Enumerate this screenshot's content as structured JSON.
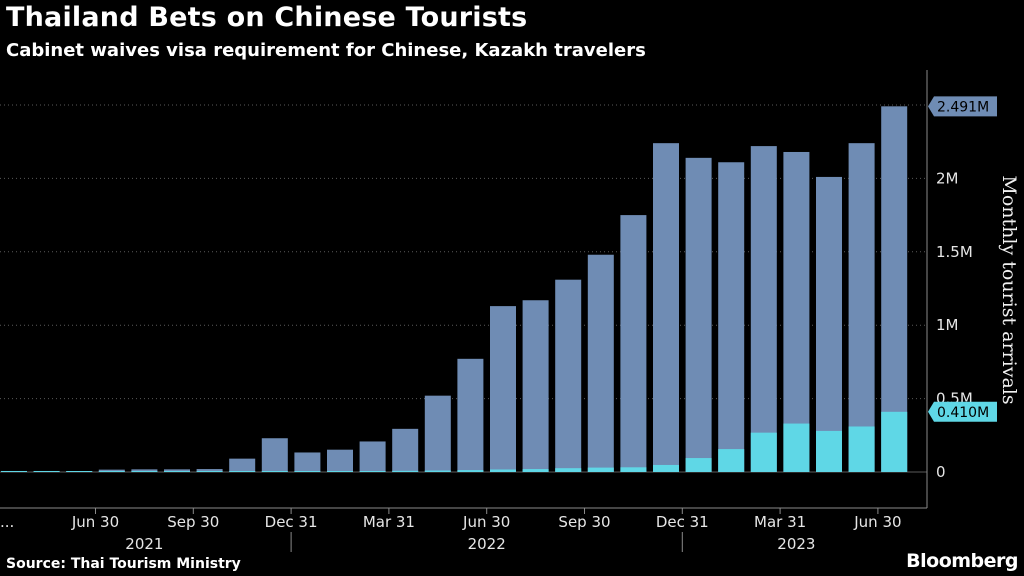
{
  "header": {
    "title": "Thailand Bets on Chinese Tourists",
    "subtitle": "Cabinet waives visa requirement for Chinese, Kazakh travelers"
  },
  "footer": {
    "source": "Source: Thai Tourism Ministry",
    "brand": "Bloomberg"
  },
  "colors": {
    "background": "#000000",
    "total_series": "#6f8cb4",
    "china_series": "#5fd7e6",
    "grid": "#5a5a5a"
  },
  "chart_data": {
    "type": "bar",
    "stacked": false,
    "overlaid": true,
    "ylabel": "Monthly tourist arrivals",
    "ylim": [
      0,
      2500000
    ],
    "y_ticks": [
      {
        "value": 0,
        "label": "0"
      },
      {
        "value": 500000,
        "label": "0.5M"
      },
      {
        "value": 1000000,
        "label": "1M"
      },
      {
        "value": 1500000,
        "label": "1.5M"
      },
      {
        "value": 2000000,
        "label": "2M"
      }
    ],
    "categories": [
      "2021-04",
      "2021-05",
      "2021-06",
      "2021-07",
      "2021-08",
      "2021-09",
      "2021-10",
      "2021-11",
      "2021-12",
      "2022-01",
      "2022-02",
      "2022-03",
      "2022-04",
      "2022-05",
      "2022-06",
      "2022-07",
      "2022-08",
      "2022-09",
      "2022-10",
      "2022-11",
      "2022-12",
      "2023-01",
      "2023-02",
      "2023-03",
      "2023-04",
      "2023-05",
      "2023-06",
      "2023-07"
    ],
    "series": [
      {
        "values": [
          7000,
          7000,
          6000,
          16000,
          18000,
          18000,
          20000,
          91000,
          230000,
          133000,
          152000,
          208000,
          294000,
          520000,
          771000,
          1130000,
          1170000,
          1310000,
          1480000,
          1750000,
          2240000,
          2140000,
          2110000,
          2220000,
          2180000,
          2010000,
          2240000,
          2491000
        ]
      },
      {
        "values": [
          1000,
          1000,
          1000,
          2000,
          2000,
          2000,
          3000,
          3000,
          4000,
          4000,
          4000,
          5000,
          8000,
          10000,
          13000,
          17000,
          20000,
          26000,
          30000,
          32000,
          48000,
          95000,
          156000,
          268000,
          330000,
          280000,
          310000,
          410000
        ]
      }
    ],
    "x_tick_labels": [
      {
        "category": "2021-06",
        "label": "Jun 30"
      },
      {
        "category": "2021-09",
        "label": "Sep 30"
      },
      {
        "category": "2021-12",
        "label": "Dec 31"
      },
      {
        "category": "2022-03",
        "label": "Mar 31"
      },
      {
        "category": "2022-06",
        "label": "Jun 30"
      },
      {
        "category": "2022-09",
        "label": "Sep 30"
      },
      {
        "category": "2022-12",
        "label": "Dec 31"
      },
      {
        "category": "2023-03",
        "label": "Mar 31"
      },
      {
        "category": "2023-06",
        "label": "Jun 30"
      }
    ],
    "leading_tick_label": "...",
    "years": [
      {
        "label": "2021",
        "from": "2021-04",
        "to": "2021-12"
      },
      {
        "label": "2022",
        "from": "2022-01",
        "to": "2022-12"
      },
      {
        "label": "2023",
        "from": "2023-01",
        "to": "2023-07"
      }
    ],
    "callouts": [
      {
        "series": 0,
        "label": "2.491M"
      },
      {
        "series": 1,
        "label": "0.410M"
      }
    ],
    "grid": true
  }
}
